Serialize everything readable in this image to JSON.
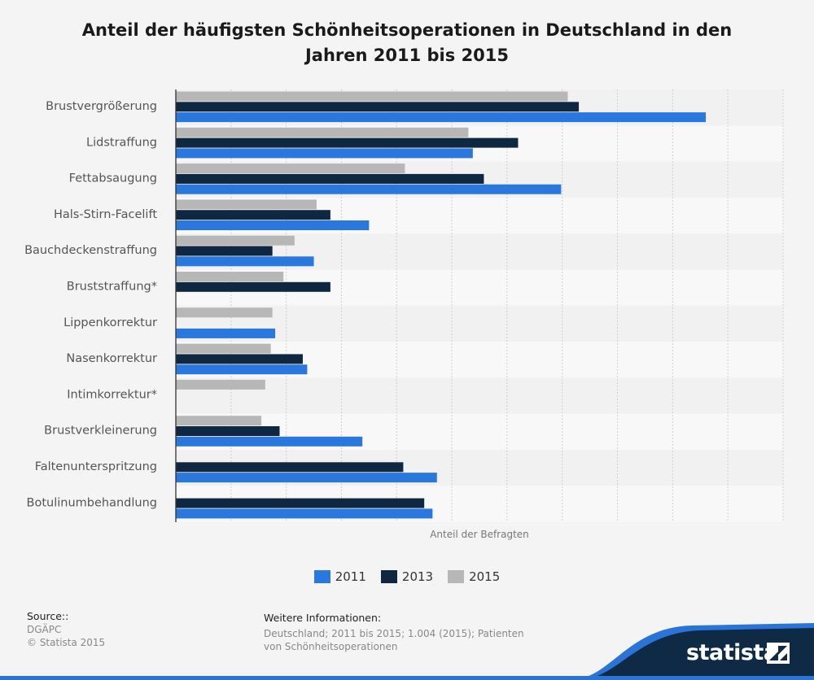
{
  "chart_data": {
    "type": "bar",
    "orientation": "horizontal",
    "title": "Anteil der häufigsten Schönheitsoperationen in Deutschland in den Jahren 2011 bis 2015",
    "xlabel": "Anteil der Befragten",
    "ylabel": "",
    "xlim": [
      0,
      11
    ],
    "grid": true,
    "legend_position": "bottom-center",
    "categories": [
      "Brustvergrößerung",
      "Lidstraffung",
      "Fettabsaugung",
      "Hals-Stirn-Facelift",
      "Bauchdeckenstraffung",
      "Bruststraffung*",
      "Lippenkorrektur",
      "Nasenkorrektur",
      "Intimkorrektur*",
      "Brustverkleinerung",
      "Faltenunterspritzung",
      "Botulinumbehandlung"
    ],
    "series": [
      {
        "name": "2015",
        "color": "#b7b7b7",
        "values": [
          7.1,
          5.3,
          4.15,
          2.55,
          2.15,
          1.95,
          1.75,
          1.72,
          1.62,
          1.55,
          null,
          null
        ]
      },
      {
        "name": "2013",
        "color": "#0f2740",
        "values": [
          7.3,
          6.2,
          5.58,
          2.8,
          1.75,
          2.8,
          null,
          2.3,
          null,
          1.88,
          4.12,
          4.5
        ]
      },
      {
        "name": "2011",
        "color": "#2a78de",
        "values": [
          9.6,
          5.38,
          6.98,
          3.5,
          2.5,
          null,
          1.8,
          2.38,
          null,
          3.38,
          4.73,
          4.65
        ]
      }
    ]
  },
  "legend": {
    "items": [
      {
        "label": "2011",
        "color": "#2a78de"
      },
      {
        "label": "2013",
        "color": "#0f2740"
      },
      {
        "label": "2015",
        "color": "#b7b7b7"
      }
    ]
  },
  "footer": {
    "source_heading": "Source::",
    "source_name": "DGÄPC",
    "copyright": "© Statista 2015",
    "info_heading": "Weitere Informationen:",
    "info_text": "Deutschland; 2011 bis 2015; 1.004 (2015); Patienten von Schönheitsoperationen",
    "brand": "statista"
  }
}
